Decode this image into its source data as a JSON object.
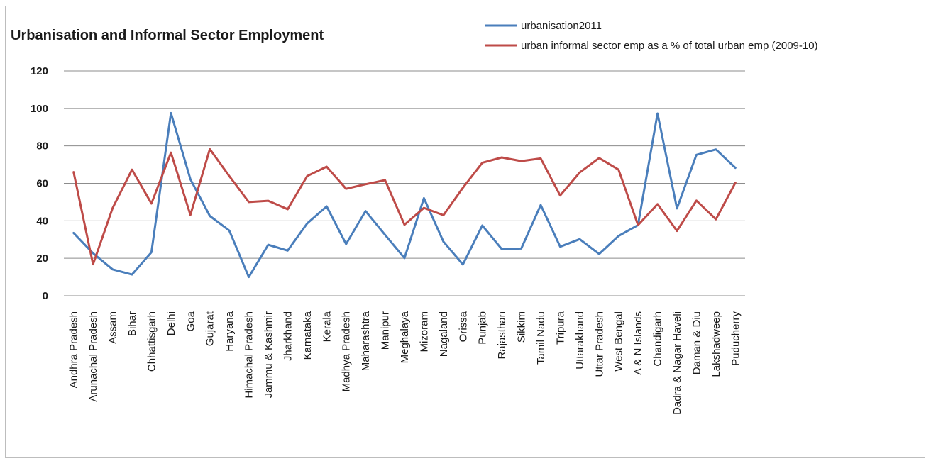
{
  "chart_data": {
    "type": "line",
    "title": "Urbanisation and Informal Sector Employment",
    "xlabel": "",
    "ylabel": "",
    "ylim": [
      0,
      120
    ],
    "yticks": [
      "0",
      "20",
      "40",
      "60",
      "80",
      "100",
      "120"
    ],
    "grid": true,
    "legend_position": "top-right",
    "categories": [
      "Andhra Pradesh",
      "Arunachal Pradesh",
      "Assam",
      "Bihar",
      "Chhattisgarh",
      "Delhi",
      "Goa",
      "Gujarat",
      "Haryana",
      "Himachal Pradesh",
      "Jammu & Kashmir",
      "Jharkhand",
      "Karnataka",
      "Kerala",
      "Madhya Pradesh",
      "Maharashtra",
      "Manipur",
      "Meghalaya",
      "Mizoram",
      "Nagaland",
      "Orissa",
      "Punjab",
      "Rajasthan",
      "Sikkim",
      "Tamil Nadu",
      "Tripura",
      "Uttarakhand",
      "Uttar Pradesh",
      "West Bengal",
      "A & N Islands",
      "Chandigarh",
      "Dadra & Nagar Haveli",
      "Daman & Diu",
      "Lakshadweep",
      "Puducherry"
    ],
    "series": [
      {
        "name": "urbanisation2011",
        "color": "#4a7ebb",
        "values": [
          33.5,
          22.7,
          14.1,
          11.3,
          23.2,
          97.5,
          62.2,
          42.6,
          34.8,
          10.0,
          27.2,
          24.1,
          38.6,
          47.7,
          27.6,
          45.2,
          32.5,
          20.1,
          52.1,
          28.9,
          16.7,
          37.5,
          24.9,
          25.2,
          48.4,
          26.2,
          30.2,
          22.3,
          31.9,
          37.7,
          97.3,
          46.6,
          75.2,
          78.1,
          68.3
        ]
      },
      {
        "name": "urban informal sector emp as a % of total urban emp (2009-10)",
        "color": "#be4b48",
        "values": [
          66.0,
          16.8,
          46.7,
          67.3,
          49.2,
          76.4,
          43.1,
          78.3,
          63.9,
          50.0,
          50.7,
          46.2,
          63.9,
          68.9,
          57.1,
          59.5,
          61.7,
          37.9,
          46.9,
          43.0,
          57.6,
          71.0,
          73.8,
          71.9,
          73.3,
          53.5,
          65.8,
          73.5,
          67.3,
          37.7,
          48.9,
          34.6,
          50.8,
          40.8,
          60.3
        ]
      }
    ]
  }
}
